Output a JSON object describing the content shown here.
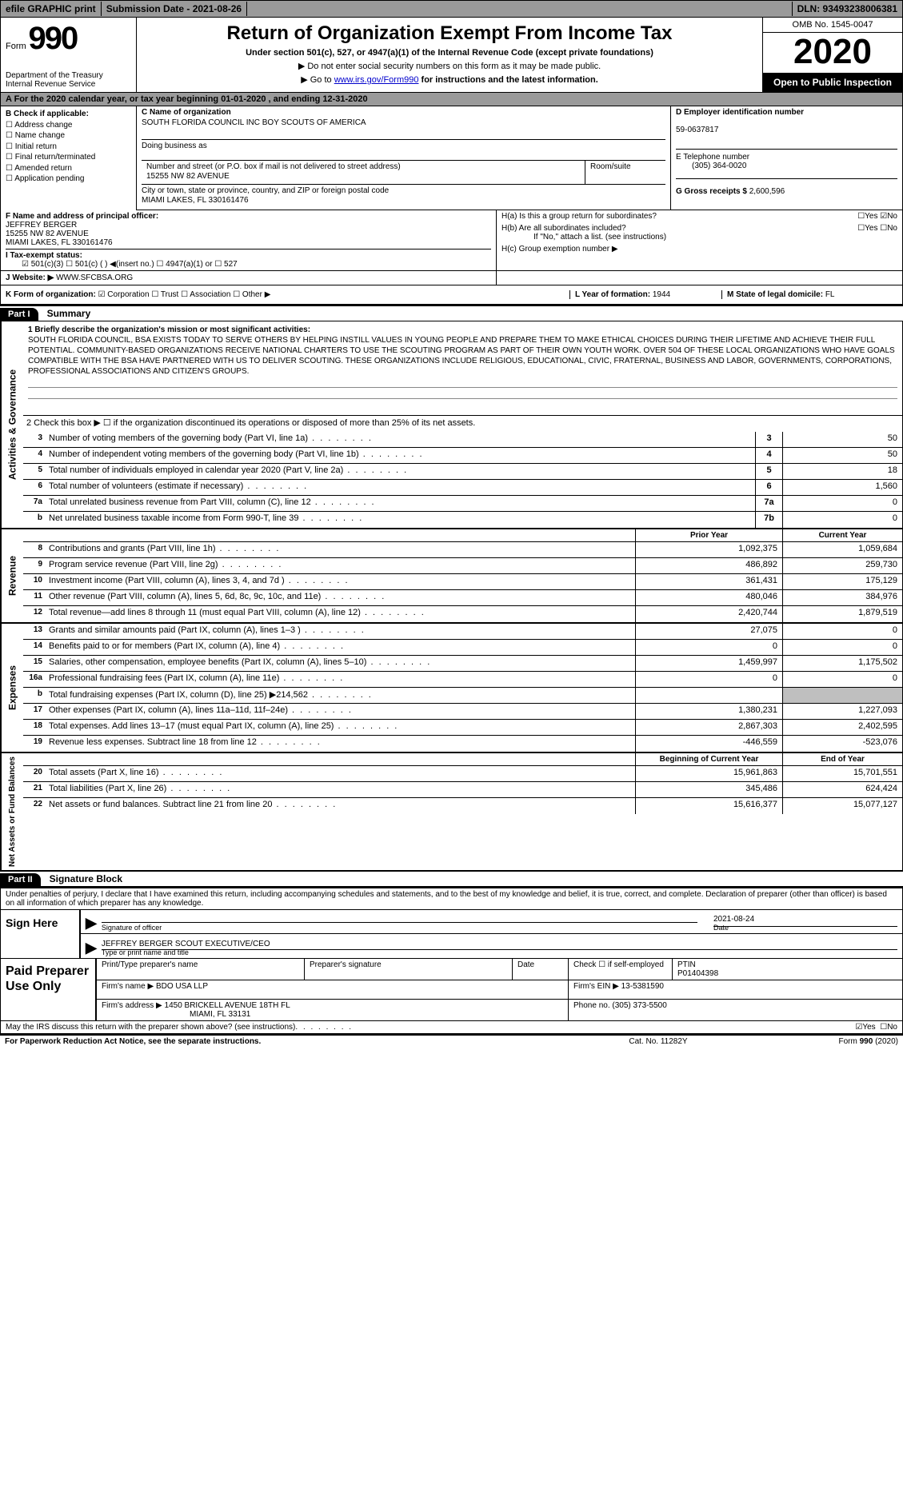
{
  "top_bar": {
    "efile": "efile GRAPHIC print",
    "submission": "Submission Date - 2021-08-26",
    "dln": "DLN: 93493238006381"
  },
  "header": {
    "form_label": "Form",
    "form_number": "990",
    "dept": "Department of the Treasury",
    "irs": "Internal Revenue Service",
    "title": "Return of Organization Exempt From Income Tax",
    "subtitle": "Under section 501(c), 527, or 4947(a)(1) of the Internal Revenue Code (except private foundations)",
    "arrow1": "▶ Do not enter social security numbers on this form as it may be made public.",
    "arrow2_pre": "▶ Go to ",
    "arrow2_link": "www.irs.gov/Form990",
    "arrow2_post": " for instructions and the latest information.",
    "omb": "OMB No. 1545-0047",
    "year": "2020",
    "open": "Open to Public Inspection"
  },
  "row_a": "A   For the 2020 calendar year, or tax year beginning 01-01-2020    , and ending 12-31-2020",
  "section_b": {
    "label": "B Check if applicable:",
    "opts": [
      "☐ Address change",
      "☐ Name change",
      "☐ Initial return",
      "☐ Final return/terminated",
      "☐ Amended return",
      "☐ Application pending"
    ]
  },
  "section_c": {
    "name_label": "C Name of organization",
    "name": "SOUTH FLORIDA COUNCIL INC BOY SCOUTS OF AMERICA",
    "dba_label": "Doing business as",
    "street_label": "Number and street (or P.O. box if mail is not delivered to street address)",
    "street": "15255 NW 82 AVENUE",
    "room_label": "Room/suite",
    "city_label": "City or town, state or province, country, and ZIP or foreign postal code",
    "city": "MIAMI LAKES, FL  330161476"
  },
  "section_d": {
    "label": "D Employer identification number",
    "value": "59-0637817"
  },
  "section_e": {
    "label": "E Telephone number",
    "value": "(305) 364-0020"
  },
  "section_g": {
    "label": "G Gross receipts $",
    "value": "2,600,596"
  },
  "section_f": {
    "label": "F  Name and address of principal officer:",
    "name": "JEFFREY BERGER",
    "addr1": "15255 NW 82 AVENUE",
    "addr2": "MIAMI LAKES, FL  330161476"
  },
  "section_h": {
    "ha": "H(a)  Is this a group return for subordinates?",
    "ha_yes": "☐Yes",
    "ha_no": "☑No",
    "hb": "H(b)  Are all subordinates included?",
    "hb_yes": "☐Yes",
    "hb_no": "☐No",
    "hb_note": "If \"No,\" attach a list. (see instructions)",
    "hc": "H(c)  Group exemption number ▶"
  },
  "row_i": {
    "label": "I   Tax-exempt status:",
    "opts": "☑ 501(c)(3)    ☐ 501(c) (  ) ◀(insert no.)    ☐ 4947(a)(1) or    ☐ 527"
  },
  "row_j": {
    "label": "J   Website: ▶",
    "value": "WWW.SFCBSA.ORG"
  },
  "row_k": {
    "label": "K Form of organization:",
    "opts": "☑ Corporation  ☐ Trust  ☐ Association  ☐ Other ▶",
    "l_label": "L Year of formation:",
    "l_val": "1944",
    "m_label": "M State of legal domicile:",
    "m_val": "FL"
  },
  "part1": {
    "hdr": "Part I",
    "title": "Summary"
  },
  "mission": {
    "label": "1   Briefly describe the organization's mission or most significant activities:",
    "text": "SOUTH FLORIDA COUNCIL, BSA EXISTS TODAY TO SERVE OTHERS BY HELPING INSTILL VALUES IN YOUNG PEOPLE AND PREPARE THEM TO MAKE ETHICAL CHOICES DURING THEIR LIFETIME AND ACHIEVE THEIR FULL POTENTIAL. COMMUNITY-BASED ORGANIZATIONS RECEIVE NATIONAL CHARTERS TO USE THE SCOUTING PROGRAM AS PART OF THEIR OWN YOUTH WORK. OVER 504 OF THESE LOCAL ORGANIZATIONS WHO HAVE GOALS COMPATIBLE WITH THE BSA HAVE PARTNERED WITH US TO DELIVER SCOUTING. THESE ORGANIZATIONS INCLUDE RELIGIOUS, EDUCATIONAL, CIVIC, FRATERNAL, BUSINESS AND LABOR, GOVERNMENTS, CORPORATIONS, PROFESSIONAL ASSOCIATIONS AND CITIZEN'S GROUPS."
  },
  "line2": "2   Check this box ▶ ☐ if the organization discontinued its operations or disposed of more than 25% of its net assets.",
  "gov_rows": [
    {
      "n": "3",
      "d": "Number of voting members of the governing body (Part VI, line 1a)",
      "box": "3",
      "v": "50"
    },
    {
      "n": "4",
      "d": "Number of independent voting members of the governing body (Part VI, line 1b)",
      "box": "4",
      "v": "50"
    },
    {
      "n": "5",
      "d": "Total number of individuals employed in calendar year 2020 (Part V, line 2a)",
      "box": "5",
      "v": "18"
    },
    {
      "n": "6",
      "d": "Total number of volunteers (estimate if necessary)",
      "box": "6",
      "v": "1,560"
    },
    {
      "n": "7a",
      "d": "Total unrelated business revenue from Part VIII, column (C), line 12",
      "box": "7a",
      "v": "0"
    },
    {
      "n": "b",
      "d": "Net unrelated business taxable income from Form 990-T, line 39",
      "box": "7b",
      "v": "0"
    }
  ],
  "col_headers": {
    "py": "Prior Year",
    "cy": "Current Year"
  },
  "revenue_side": "Revenue",
  "gov_side": "Activities & Governance",
  "exp_side": "Expenses",
  "net_side": "Net Assets or Fund Balances",
  "revenue_rows": [
    {
      "n": "8",
      "d": "Contributions and grants (Part VIII, line 1h)",
      "py": "1,092,375",
      "cy": "1,059,684"
    },
    {
      "n": "9",
      "d": "Program service revenue (Part VIII, line 2g)",
      "py": "486,892",
      "cy": "259,730"
    },
    {
      "n": "10",
      "d": "Investment income (Part VIII, column (A), lines 3, 4, and 7d )",
      "py": "361,431",
      "cy": "175,129"
    },
    {
      "n": "11",
      "d": "Other revenue (Part VIII, column (A), lines 5, 6d, 8c, 9c, 10c, and 11e)",
      "py": "480,046",
      "cy": "384,976"
    },
    {
      "n": "12",
      "d": "Total revenue—add lines 8 through 11 (must equal Part VIII, column (A), line 12)",
      "py": "2,420,744",
      "cy": "1,879,519"
    }
  ],
  "expense_rows": [
    {
      "n": "13",
      "d": "Grants and similar amounts paid (Part IX, column (A), lines 1–3 )",
      "py": "27,075",
      "cy": "0"
    },
    {
      "n": "14",
      "d": "Benefits paid to or for members (Part IX, column (A), line 4)",
      "py": "0",
      "cy": "0"
    },
    {
      "n": "15",
      "d": "Salaries, other compensation, employee benefits (Part IX, column (A), lines 5–10)",
      "py": "1,459,997",
      "cy": "1,175,502"
    },
    {
      "n": "16a",
      "d": "Professional fundraising fees (Part IX, column (A), line 11e)",
      "py": "0",
      "cy": "0"
    },
    {
      "n": "b",
      "d": "Total fundraising expenses (Part IX, column (D), line 25) ▶214,562",
      "py": "",
      "cy": "",
      "shaded": true
    },
    {
      "n": "17",
      "d": "Other expenses (Part IX, column (A), lines 11a–11d, 11f–24e)",
      "py": "1,380,231",
      "cy": "1,227,093"
    },
    {
      "n": "18",
      "d": "Total expenses. Add lines 13–17 (must equal Part IX, column (A), line 25)",
      "py": "2,867,303",
      "cy": "2,402,595"
    },
    {
      "n": "19",
      "d": "Revenue less expenses. Subtract line 18 from line 12",
      "py": "-446,559",
      "cy": "-523,076"
    }
  ],
  "net_headers": {
    "py": "Beginning of Current Year",
    "cy": "End of Year"
  },
  "net_rows": [
    {
      "n": "20",
      "d": "Total assets (Part X, line 16)",
      "py": "15,961,863",
      "cy": "15,701,551"
    },
    {
      "n": "21",
      "d": "Total liabilities (Part X, line 26)",
      "py": "345,486",
      "cy": "624,424"
    },
    {
      "n": "22",
      "d": "Net assets or fund balances. Subtract line 21 from line 20",
      "py": "15,616,377",
      "cy": "15,077,127"
    }
  ],
  "part2": {
    "hdr": "Part II",
    "title": "Signature Block"
  },
  "sig_decl": "Under penalties of perjury, I declare that I have examined this return, including accompanying schedules and statements, and to the best of my knowledge and belief, it is true, correct, and complete. Declaration of preparer (other than officer) is based on all information of which preparer has any knowledge.",
  "sign_here": "Sign Here",
  "sig_officer_label": "Signature of officer",
  "sig_date_label": "Date",
  "sig_date": "2021-08-24",
  "sig_name": "JEFFREY BERGER  SCOUT EXECUTIVE/CEO",
  "sig_name_label": "Type or print name and title",
  "paid_side": "Paid Preparer Use Only",
  "paid": {
    "r1_a": "Print/Type preparer's name",
    "r1_b": "Preparer's signature",
    "r1_c": "Date",
    "r1_d": "Check ☐ if self-employed",
    "r1_e_label": "PTIN",
    "r1_e": "P01404398",
    "r2_a": "Firm's name    ▶",
    "r2_a_val": "BDO USA LLP",
    "r2_b": "Firm's EIN ▶",
    "r2_b_val": "13-5381590",
    "r3_a": "Firm's address ▶",
    "r3_a_val": "1450 BRICKELL AVENUE 18TH FL",
    "r3_a_val2": "MIAMI, FL  33131",
    "r3_b": "Phone no.",
    "r3_b_val": "(305) 373-5500"
  },
  "may_irs": "May the IRS discuss this return with the preparer shown above? (see instructions)",
  "may_yes": "☑Yes",
  "may_no": "☐No",
  "footer": {
    "left": "For Paperwork Reduction Act Notice, see the separate instructions.",
    "mid": "Cat. No. 11282Y",
    "right": "Form 990 (2020)"
  }
}
